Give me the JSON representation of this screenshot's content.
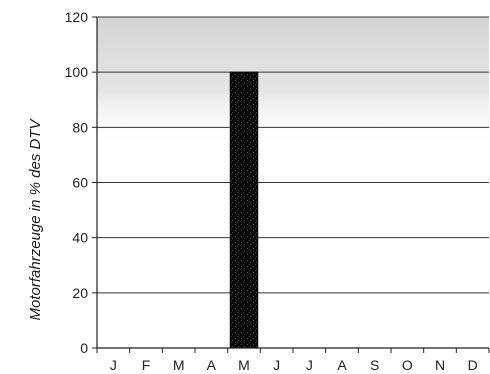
{
  "chart_data": {
    "type": "bar",
    "title": "",
    "xlabel": "",
    "ylabel": "Motorfahrzeuge in % des DTV",
    "categories": [
      "J",
      "F",
      "M",
      "A",
      "M",
      "J",
      "J",
      "A",
      "S",
      "O",
      "N",
      "D"
    ],
    "values": [
      null,
      null,
      null,
      null,
      100,
      null,
      null,
      null,
      null,
      null,
      null,
      null
    ],
    "ylim": [
      0,
      120
    ],
    "yticks": [
      0,
      20,
      40,
      60,
      80,
      100,
      120
    ],
    "grid": true,
    "bar_color": "#111111",
    "background_band": {
      "from": 72,
      "to": 120,
      "color": "#d9d9d9"
    }
  }
}
